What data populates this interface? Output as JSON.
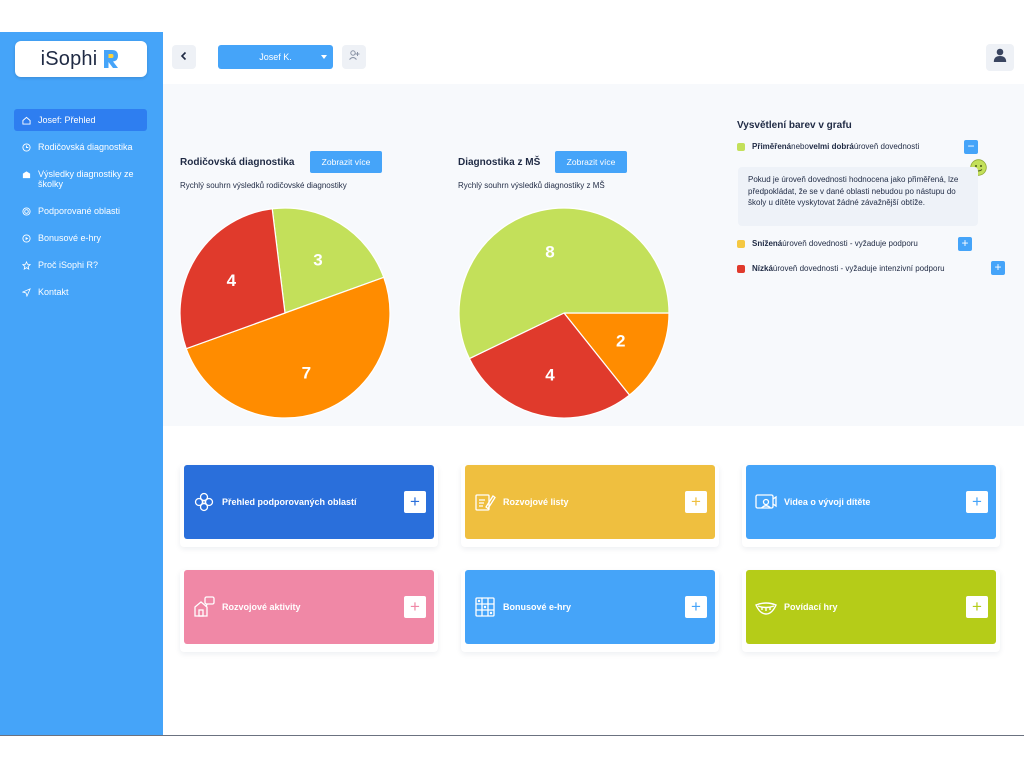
{
  "app": {
    "logo_text": "iSophi",
    "logo_letter": "R",
    "brand_color": "#45a4f9"
  },
  "sidebar": {
    "items": [
      {
        "label": "Josef: Přehled",
        "icon": "home-icon",
        "active": true
      },
      {
        "label": "Rodičovská diagnostika",
        "icon": "clock-icon",
        "active": false
      },
      {
        "label": "Výsledky diagnostiky ze školky",
        "icon": "school-icon",
        "active": false
      },
      {
        "label": "Podporované oblasti",
        "icon": "target-icon",
        "active": false
      },
      {
        "label": "Bonusové e-hry",
        "icon": "play-icon",
        "active": false
      },
      {
        "label": "Proč iSophi R?",
        "icon": "star-icon",
        "active": false
      },
      {
        "label": "Kontakt",
        "icon": "send-icon",
        "active": false
      }
    ]
  },
  "topbar": {
    "back_icon": "chevron-left-icon",
    "child_select_value": "Josef K.",
    "add_child_icon": "user-plus-icon",
    "user_icon": "user-icon"
  },
  "parent_card": {
    "title": "Rodičovská diagnostika",
    "button": "Zobrazit více",
    "subtitle": "Rychlý souhrn výsledků rodičovské diagnostiky"
  },
  "school_card": {
    "title": "Diagnostika z MŠ",
    "button": "Zobrazit více",
    "subtitle": "Rychlý souhrn výsledků diagnostiky z MŠ"
  },
  "chart_data": [
    {
      "type": "pie",
      "title": "Rodičovská diagnostika",
      "categories": [
        "Přiměřená",
        "Snížená",
        "Nízká"
      ],
      "values": [
        3,
        7,
        4
      ],
      "colors": [
        "#c3e05a",
        "#ff8c00",
        "#e03a2c"
      ]
    },
    {
      "type": "pie",
      "title": "Diagnostika z MŠ",
      "categories": [
        "Přiměřená",
        "Snížená",
        "Nízká"
      ],
      "values": [
        8,
        2,
        4
      ],
      "colors": [
        "#c3e05a",
        "#ff8c00",
        "#e03a2c"
      ]
    }
  ],
  "legend": {
    "title": "Vysvětlení barev v grafu",
    "rows": [
      {
        "color": "#c3e05a",
        "bold1": "Přiměřená",
        "mid": " nebo ",
        "bold2": "velmi dobrá",
        "rest": " úroveň dovednosti",
        "button": "−"
      },
      {
        "color": "#f5c842",
        "bold1": "Snížená",
        "rest": " úroveň dovednosti - vyžaduje podporu",
        "button": "+"
      },
      {
        "color": "#e03a2c",
        "bold1": "Nízká",
        "rest": " úroveň dovednosti - vyžaduje intenzivní podporu",
        "button": "+"
      }
    ],
    "description": "Pokud je úroveň dovednosti hodnocena jako přiměřená, lze předpokládat, že se v dané oblasti nebudou po nástupu do školy u dítěte vyskytovat žádné závažnější obtíže.",
    "smiley_icon": "smiley-icon"
  },
  "tiles": [
    {
      "label": "Přehled podporovaných oblastí",
      "color": "#2a6fdb",
      "icon": "flower-icon",
      "plus": "+"
    },
    {
      "label": "Rozvojové listy",
      "color": "#efbf3f",
      "icon": "worksheet-icon",
      "plus": "+"
    },
    {
      "label": "Videa o vývoji dítěte",
      "color": "#45a4f9",
      "icon": "video-icon",
      "plus": "+"
    },
    {
      "label": "Rozvojové aktivity",
      "color": "#f088a6",
      "icon": "house-activity-icon",
      "plus": "+"
    },
    {
      "label": "Bonusové e-hry",
      "color": "#45a4f9",
      "icon": "games-grid-icon",
      "plus": "+"
    },
    {
      "label": "Povídací hry",
      "color": "#b5cc18",
      "icon": "mouth-icon",
      "plus": "+"
    }
  ]
}
